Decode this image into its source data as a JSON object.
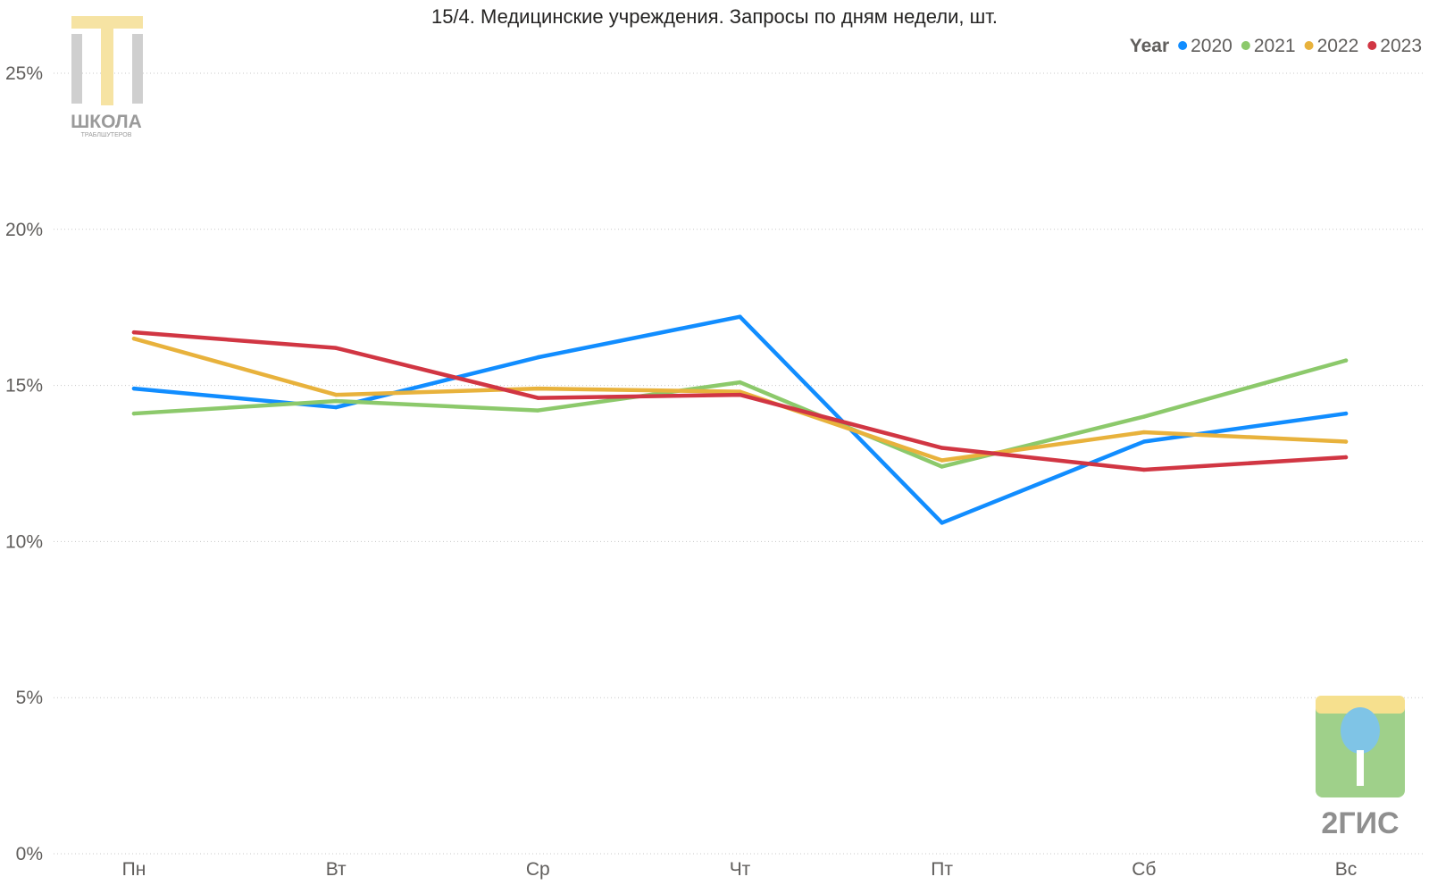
{
  "chart_data": {
    "type": "line",
    "title": "15/4. Медицинские учреждения. Запросы по дням недели, шт.",
    "xlabel": "",
    "ylabel": "",
    "categories": [
      "Пн",
      "Вт",
      "Ср",
      "Чт",
      "Пт",
      "Сб",
      "Вс"
    ],
    "y_ticks": [
      "0%",
      "5%",
      "10%",
      "15%",
      "20%",
      "25%"
    ],
    "ylim": [
      0,
      25
    ],
    "grid": true,
    "legend": {
      "title": "Year",
      "placement": "top-right"
    },
    "series": [
      {
        "name": "2020",
        "color": "#118DFF",
        "values": [
          14.9,
          14.3,
          15.9,
          17.2,
          10.6,
          13.2,
          14.1
        ]
      },
      {
        "name": "2021",
        "color": "#8CC96B",
        "values": [
          14.1,
          14.5,
          14.2,
          15.1,
          12.4,
          14.0,
          15.8
        ]
      },
      {
        "name": "2022",
        "color": "#E8B23C",
        "values": [
          16.5,
          14.7,
          14.9,
          14.8,
          12.6,
          13.5,
          13.2
        ]
      },
      {
        "name": "2023",
        "color": "#D13643",
        "values": [
          16.7,
          16.2,
          14.6,
          14.7,
          13.0,
          12.3,
          12.7
        ]
      }
    ]
  },
  "logos": {
    "school": {
      "name": "school-logo",
      "line1": "ШКОЛА",
      "line2": "ТРАБЛШУТЕРОВ"
    },
    "gis": {
      "name": "2gis-logo",
      "text": "2ГИС"
    }
  }
}
